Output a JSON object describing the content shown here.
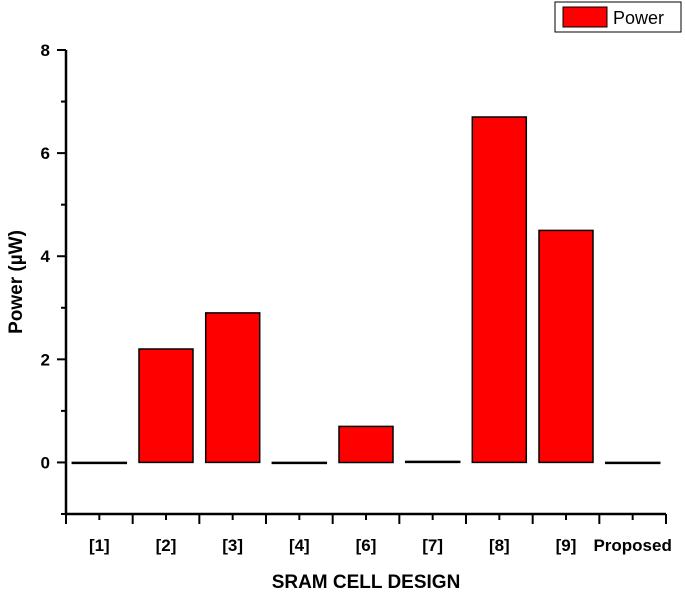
{
  "chart_data": {
    "type": "bar",
    "categories": [
      "[1]",
      "[2]",
      "[3]",
      "[4]",
      "[6]",
      "[7]",
      "[8]",
      "[9]",
      "Proposed"
    ],
    "series": [
      {
        "name": "Power",
        "values": [
          0,
          2.2,
          2.9,
          0,
          0.7,
          0.02,
          6.7,
          4.5,
          0
        ]
      }
    ],
    "title": "",
    "xlabel": "SRAM CELL DESIGN",
    "ylabel": "Power (µW)",
    "ylim": [
      -1,
      8
    ],
    "yticks": [
      "0",
      "2",
      "4",
      "6",
      "8"
    ],
    "grid": false,
    "legend_position": "top-right",
    "colors": {
      "bar_fill": "#ff0000",
      "bar_stroke": "#000000",
      "axis": "#000000"
    }
  }
}
